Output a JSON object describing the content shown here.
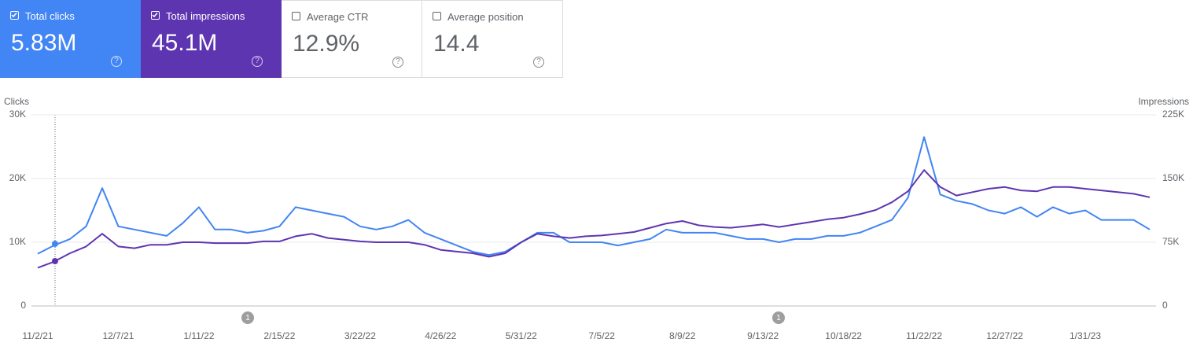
{
  "metrics": [
    {
      "label": "Total clicks",
      "value": "5.83M",
      "checked": true,
      "color": "#4285f4"
    },
    {
      "label": "Total impressions",
      "value": "45.1M",
      "checked": true,
      "color": "#5e35b1"
    },
    {
      "label": "Average CTR",
      "value": "12.9%",
      "checked": false
    },
    {
      "label": "Average position",
      "value": "14.4",
      "checked": false
    }
  ],
  "chart_data": {
    "type": "line",
    "ylabel": "Clicks",
    "y2label": "Impressions",
    "x": [
      "11/2/21",
      "11/9/21",
      "11/16/21",
      "11/23/21",
      "11/30/21",
      "12/7/21",
      "12/14/21",
      "12/21/21",
      "12/28/21",
      "1/4/22",
      "1/11/22",
      "1/18/22",
      "1/25/22",
      "2/1/22",
      "2/8/22",
      "2/15/22",
      "2/22/22",
      "3/1/22",
      "3/8/22",
      "3/15/22",
      "3/22/22",
      "3/29/22",
      "4/5/22",
      "4/12/22",
      "4/19/22",
      "4/26/22",
      "5/3/22",
      "5/10/22",
      "5/17/22",
      "5/24/22",
      "5/31/22",
      "6/7/22",
      "6/14/22",
      "6/21/22",
      "6/28/22",
      "7/5/22",
      "7/12/22",
      "7/19/22",
      "7/26/22",
      "8/2/22",
      "8/9/22",
      "8/16/22",
      "8/23/22",
      "8/30/22",
      "9/6/22",
      "9/13/22",
      "9/20/22",
      "9/27/22",
      "10/4/22",
      "10/11/22",
      "10/18/22",
      "10/25/22",
      "11/1/22",
      "11/8/22",
      "11/15/22",
      "11/22/22",
      "11/29/22",
      "12/6/22",
      "12/13/22",
      "12/20/22",
      "12/27/22",
      "1/3/23",
      "1/10/23",
      "1/17/23",
      "1/24/23",
      "1/31/23",
      "2/7/23",
      "2/14/23",
      "2/21/23",
      "2/28/23"
    ],
    "xlim": [
      "11/2/21",
      "2/28/23"
    ],
    "xticks": [
      "11/2/21",
      "12/7/21",
      "1/11/22",
      "2/15/22",
      "3/22/22",
      "4/26/22",
      "5/31/22",
      "7/5/22",
      "8/9/22",
      "9/13/22",
      "10/18/22",
      "11/22/22",
      "12/27/22",
      "1/31/23"
    ],
    "ylim": [
      0,
      30000
    ],
    "yticks": [
      0,
      {
        "value": 10000,
        "label": "10K"
      },
      {
        "value": 20000,
        "label": "20K"
      },
      {
        "value": 30000,
        "label": "30K"
      }
    ],
    "y2lim": [
      0,
      225000
    ],
    "y2ticks": [
      0,
      {
        "value": 75000,
        "label": "75K"
      },
      {
        "value": 150000,
        "label": "150K"
      },
      {
        "value": 225000,
        "label": "225K"
      }
    ],
    "grid": true,
    "annotations": [
      "1",
      "1"
    ],
    "series": [
      {
        "name": "Clicks",
        "color": "#4285f4",
        "values": [
          8200,
          9500,
          10500,
          12500,
          18500,
          12500,
          12000,
          11500,
          11000,
          13000,
          15500,
          12000,
          12000,
          11500,
          11800,
          12500,
          15500,
          15000,
          14500,
          14000,
          12500,
          12000,
          12500,
          13500,
          11500,
          10500,
          9500,
          8500,
          8000,
          8500,
          10000,
          11500,
          11500,
          10000,
          10000,
          10000,
          9500,
          10000,
          10500,
          12000,
          11500,
          11500,
          11500,
          11000,
          10500,
          10500,
          10000,
          10500,
          10500,
          11000,
          11000,
          11500,
          12500,
          13500,
          17000,
          26500,
          17500,
          16500,
          16000,
          15000,
          14500,
          15500,
          14000,
          15500,
          14500,
          15000,
          13500,
          13500,
          13500,
          12000
        ]
      },
      {
        "name": "Impressions",
        "color": "#5e35b1",
        "axis": "y2",
        "values": [
          45000,
          52000,
          62000,
          70000,
          85000,
          70000,
          68000,
          72000,
          72000,
          75000,
          75000,
          74000,
          74000,
          74000,
          76000,
          76000,
          82000,
          85000,
          80000,
          78000,
          76000,
          75000,
          75000,
          75000,
          72000,
          66000,
          64000,
          62000,
          58000,
          62000,
          75000,
          85000,
          82000,
          80000,
          82000,
          83000,
          85000,
          87000,
          92000,
          97000,
          100000,
          95000,
          93000,
          92000,
          94000,
          96000,
          93000,
          96000,
          99000,
          102000,
          104000,
          108000,
          113000,
          122000,
          135000,
          160000,
          140000,
          130000,
          134000,
          138000,
          140000,
          136000,
          135000,
          140000,
          140000,
          138000,
          136000,
          134000,
          132000,
          128000
        ]
      }
    ]
  }
}
